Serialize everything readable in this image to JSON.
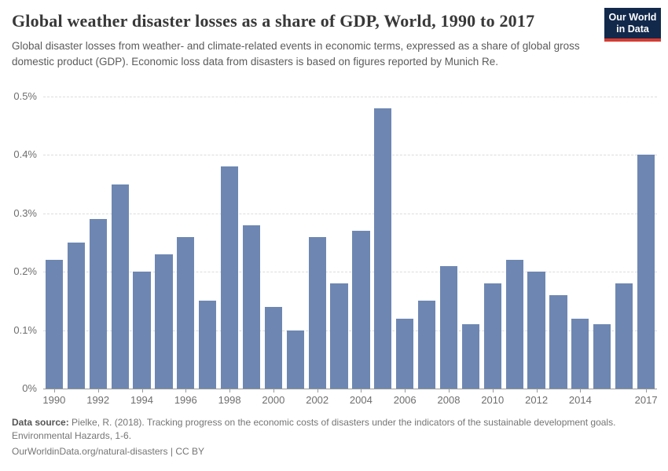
{
  "header": {
    "title": "Global weather disaster losses as a share of GDP, World, 1990 to 2017",
    "subtitle": "Global disaster losses from weather- and climate-related events in economic terms, expressed as a share of global gross domestic product (GDP). Economic loss data from disasters is based on figures reported by Munich Re.",
    "logo": {
      "line1": "Our World",
      "line2": "in Data",
      "bg_color": "#12294b",
      "stripe_color": "#d43b33"
    }
  },
  "chart_data": {
    "type": "bar",
    "title": "Global weather disaster losses as a share of GDP, World, 1990 to 2017",
    "categories": [
      1990,
      1991,
      1992,
      1993,
      1994,
      1995,
      1996,
      1997,
      1998,
      1999,
      2000,
      2001,
      2002,
      2003,
      2004,
      2005,
      2006,
      2007,
      2008,
      2009,
      2010,
      2011,
      2012,
      2013,
      2014,
      2015,
      2016,
      2017
    ],
    "values": [
      0.22,
      0.25,
      0.29,
      0.35,
      0.2,
      0.23,
      0.26,
      0.15,
      0.38,
      0.28,
      0.14,
      0.1,
      0.26,
      0.18,
      0.27,
      0.48,
      0.12,
      0.15,
      0.21,
      0.11,
      0.18,
      0.22,
      0.2,
      0.16,
      0.12,
      0.11,
      0.18,
      0.4
    ],
    "unit": "% of GDP",
    "xlabel": "",
    "ylabel": "",
    "ylim": [
      0,
      0.5
    ],
    "grid": "dashed-horizontal",
    "legend_position": "none",
    "y_ticks": [
      {
        "value": 0.0,
        "label": "0%"
      },
      {
        "value": 0.1,
        "label": "0.1%"
      },
      {
        "value": 0.2,
        "label": "0.2%"
      },
      {
        "value": 0.3,
        "label": "0.3%"
      },
      {
        "value": 0.4,
        "label": "0.4%"
      },
      {
        "value": 0.5,
        "label": "0.5%"
      }
    ],
    "x_tick_labels": [
      "1990",
      "1992",
      "1994",
      "1996",
      "1998",
      "2000",
      "2002",
      "2004",
      "2006",
      "2008",
      "2010",
      "2012",
      "2014",
      "2017"
    ],
    "bar_color": "#6e87b2"
  },
  "footer": {
    "source_label": "Data source:",
    "source_text": " Pielke, R. (2018). Tracking progress on the economic costs of disasters under the indicators of the sustainable development goals. Environmental Hazards, 1-6.",
    "url_text": "OurWorldinData.org/natural-disasters",
    "divider": " | ",
    "license_text": "CC BY"
  }
}
